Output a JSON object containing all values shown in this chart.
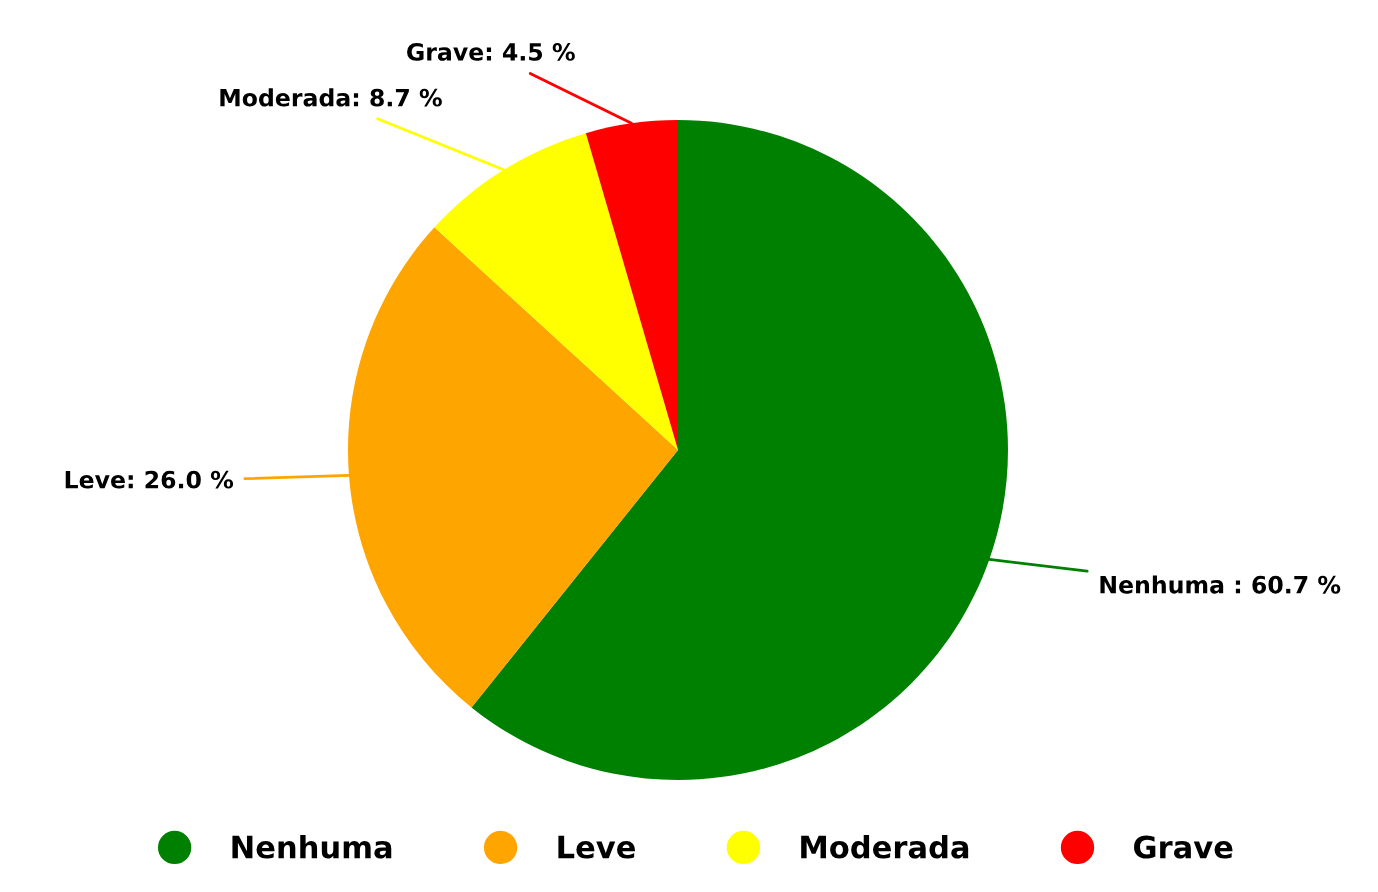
{
  "chart_data": {
    "type": "pie",
    "categories": [
      "Nenhuma",
      "Leve",
      "Moderada",
      "Grave"
    ],
    "values": [
      60.7,
      26.0,
      8.7,
      4.5
    ],
    "colors": [
      "#008000",
      "#ffa500",
      "#ffff00",
      "#ff0000"
    ],
    "value_labels": [
      "Nenhuma : 60.7 %",
      "Leve: 26.0 %",
      "Moderada: 8.7 %",
      "Grave: 4.5 %"
    ],
    "legend": "bottom"
  }
}
